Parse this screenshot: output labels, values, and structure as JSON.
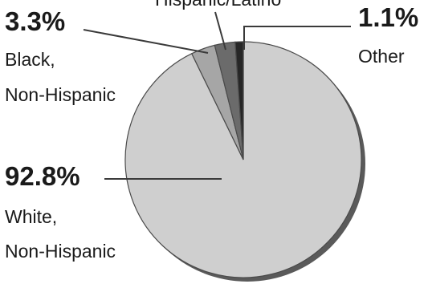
{
  "chart_data": {
    "type": "pie",
    "title": "",
    "slices": [
      {
        "label": "White, Non-Hispanic",
        "value": 92.8,
        "value_label": "92.8%",
        "label_lines": [
          "White,",
          "Non-Hispanic"
        ],
        "color": "#cfcfcf"
      },
      {
        "label": "Black, Non-Hispanic",
        "value": 3.3,
        "value_label": "3.3%",
        "label_lines": [
          "Black,",
          "Non-Hispanic"
        ],
        "color": "#a6a6a6"
      },
      {
        "label": "Hispanic/Latino",
        "value": 2.8,
        "value_label": "",
        "label_lines": [
          "Hispanic/Latino"
        ],
        "color": "#6b6b6b"
      },
      {
        "label": "Other",
        "value": 1.1,
        "value_label": "1.1%",
        "label_lines": [
          "Other"
        ],
        "color": "#262626"
      }
    ],
    "start_angle": "12 o'clock, counter-clockwise for minor slices"
  },
  "colors": {
    "shadow": "#5a5a5a",
    "outline": "#4a4a4a",
    "leader_line": "#3a3a3a"
  }
}
